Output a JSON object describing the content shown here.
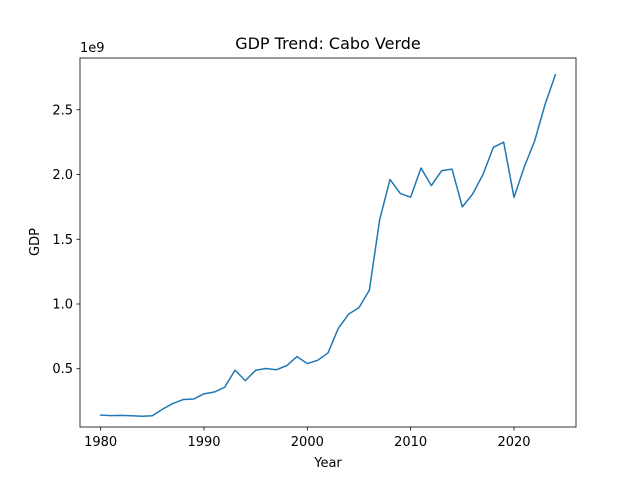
{
  "chart_data": {
    "type": "line",
    "title": "GDP Trend: Cabo Verde",
    "xlabel": "Year",
    "ylabel": "GDP",
    "y_multiplier_label": "1e9",
    "xlim": [
      1978,
      2026
    ],
    "ylim": [
      0.05,
      2.9
    ],
    "y_unit_scale": 1000000000,
    "xticks": [
      1980,
      1990,
      2000,
      2010,
      2020
    ],
    "yticks": [
      0.5,
      1.0,
      1.5,
      2.0,
      2.5
    ],
    "ytick_labels": [
      "0.5",
      "1.0",
      "1.5",
      "2.0",
      "2.5"
    ],
    "grid": false,
    "series": [
      {
        "color": "#1f77b4",
        "x": [
          1980,
          1981,
          1982,
          1983,
          1984,
          1985,
          1986,
          1987,
          1988,
          1989,
          1990,
          1991,
          1992,
          1993,
          1994,
          1995,
          1996,
          1997,
          1998,
          1999,
          2000,
          2001,
          2002,
          2003,
          2004,
          2005,
          2006,
          2007,
          2008,
          2009,
          2010,
          2011,
          2012,
          2013,
          2014,
          2015,
          2016,
          2017,
          2018,
          2019,
          2020,
          2021,
          2022,
          2023,
          2024
        ],
        "y": [
          0.142,
          0.138,
          0.14,
          0.137,
          0.133,
          0.137,
          0.188,
          0.232,
          0.262,
          0.266,
          0.306,
          0.32,
          0.357,
          0.489,
          0.408,
          0.488,
          0.502,
          0.492,
          0.524,
          0.594,
          0.54,
          0.565,
          0.622,
          0.812,
          0.922,
          0.972,
          1.106,
          1.65,
          1.962,
          1.853,
          1.825,
          2.05,
          1.915,
          2.03,
          2.042,
          1.75,
          1.85,
          2.0,
          2.21,
          2.25,
          1.823,
          2.06,
          2.26,
          2.54,
          2.77
        ]
      }
    ]
  }
}
